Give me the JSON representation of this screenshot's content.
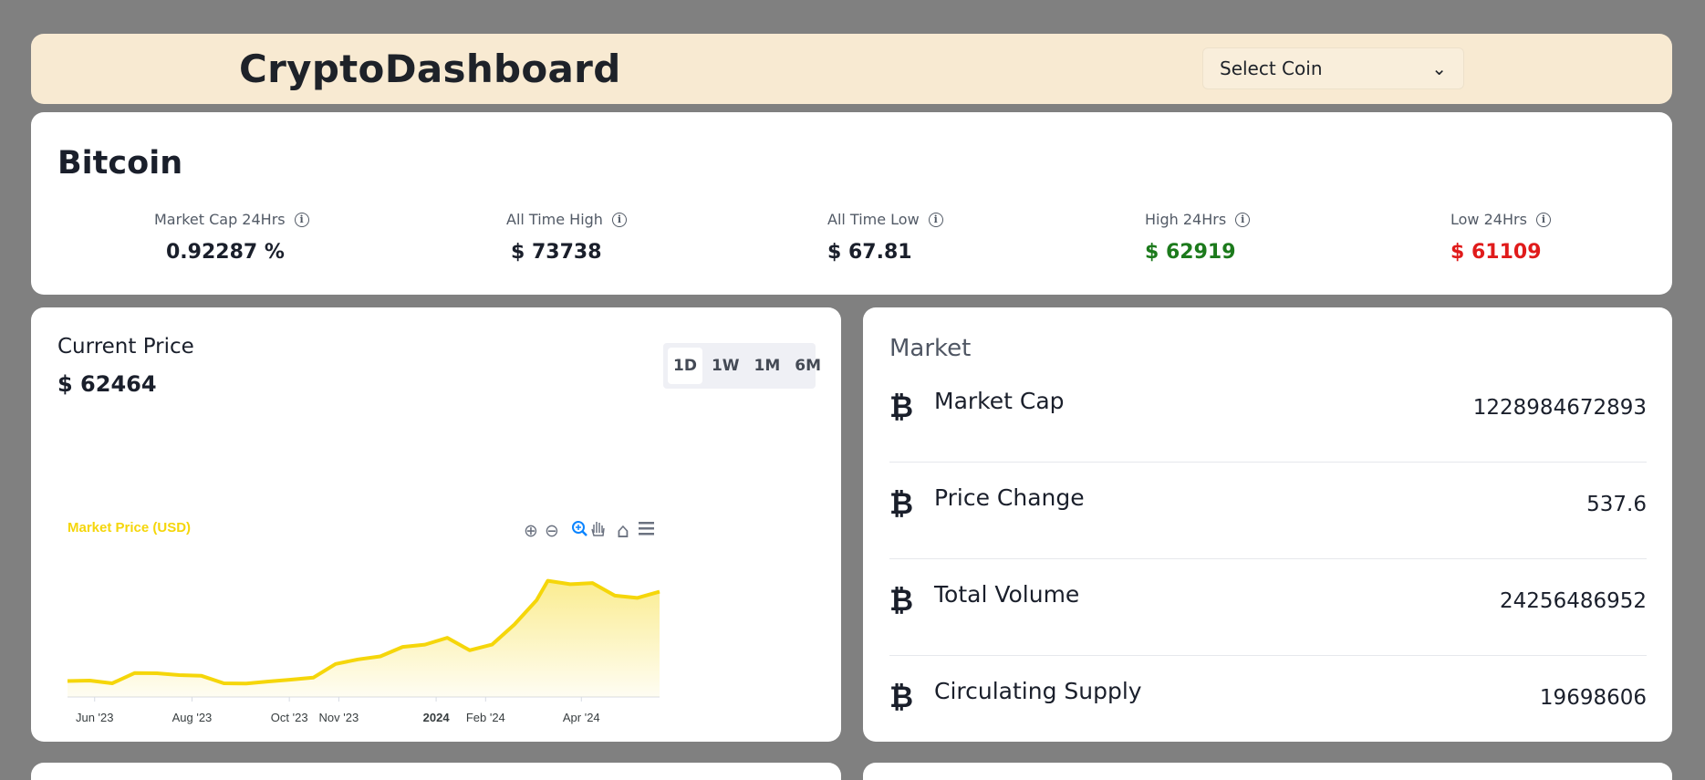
{
  "header": {
    "brand": "CryptoDashboard",
    "select_label": "Select Coin",
    "select_chevron": "⌄"
  },
  "coin": {
    "name": "Bitcoin"
  },
  "stats": [
    {
      "label": "Market Cap 24Hrs",
      "value": "0.92287 %",
      "color": "#1a1f2b"
    },
    {
      "label": "All Time High",
      "value": "$ 73738",
      "color": "#1a1f2b"
    },
    {
      "label": "All Time Low",
      "value": "$ 67.81",
      "color": "#1a1f2b"
    },
    {
      "label": "High 24Hrs",
      "value": "$ 62919",
      "color": "#1c7a1c"
    },
    {
      "label": "Low 24Hrs",
      "value": "$ 61109",
      "color": "#e01b1b"
    }
  ],
  "info_glyph": "i",
  "price": {
    "label": "Current Price",
    "value": "$ 62464"
  },
  "ranges": {
    "d1": "1D",
    "w1": "1W",
    "m1": "1M",
    "m6": "6M",
    "active": "1D"
  },
  "market": {
    "title": "Market",
    "coin_symbol": "₿",
    "rows": [
      {
        "label": "Market Cap",
        "value": "1228984672893"
      },
      {
        "label": "Price Change",
        "value": "537.6"
      },
      {
        "label": "Total Volume",
        "value": "24256486952"
      },
      {
        "label": "Circulating Supply",
        "value": "19698606"
      }
    ]
  },
  "chart_data": {
    "type": "area",
    "title": "Market Price (USD)",
    "xlabel": "",
    "ylabel": "",
    "x_ticks": [
      "Jun '23",
      "Aug '23",
      "Oct '23",
      "Nov '23",
      "2024",
      "Feb '24",
      "Apr '24"
    ],
    "x_tick_bold": "2024",
    "series": [
      {
        "name": "Market Price (USD)",
        "color": "#f5d60a",
        "x": [
          "2023-05-15",
          "2023-05-29",
          "2023-06-12",
          "2023-06-26",
          "2023-07-10",
          "2023-07-24",
          "2023-08-07",
          "2023-08-21",
          "2023-09-04",
          "2023-09-18",
          "2023-10-02",
          "2023-10-16",
          "2023-10-30",
          "2023-11-13",
          "2023-11-27",
          "2023-12-11",
          "2023-12-25",
          "2024-01-08",
          "2024-01-22",
          "2024-02-05",
          "2024-02-19",
          "2024-03-04",
          "2024-03-11",
          "2024-03-25",
          "2024-04-08",
          "2024-04-22",
          "2024-05-06",
          "2024-05-20"
        ],
        "values": [
          27000,
          27200,
          26000,
          30500,
          30400,
          29600,
          29300,
          26000,
          25900,
          26800,
          27600,
          28500,
          34500,
          36500,
          37800,
          42000,
          43000,
          46000,
          40500,
          43000,
          51800,
          62500,
          71000,
          69500,
          70000,
          64500,
          63500,
          66200
        ]
      }
    ],
    "ylim": [
      20000,
      80000
    ]
  },
  "chart_toolbar": {
    "zoom_in": "⊕",
    "zoom_out": "⊖",
    "home": "⌂"
  }
}
